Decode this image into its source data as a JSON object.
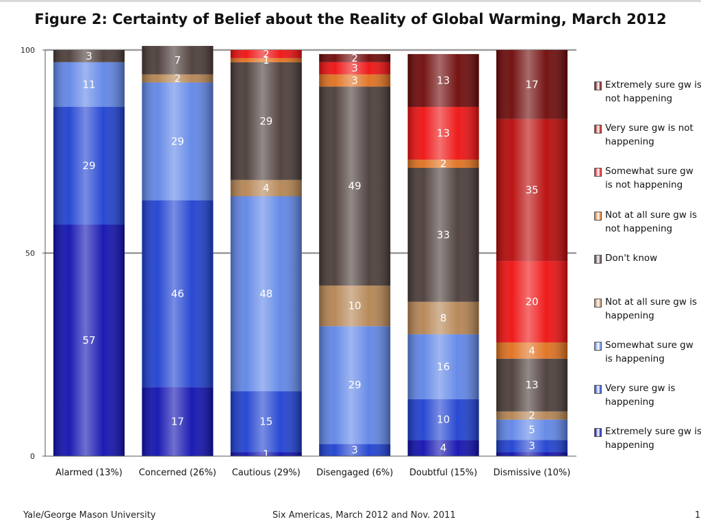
{
  "title": "Figure 2:  Certainty of Belief about the Reality of Global Warming,  March 2012",
  "footer": {
    "left": "Yale/George Mason University",
    "center": "Six Americas, March 2012 and Nov. 2011",
    "page": "1"
  },
  "chart_data": {
    "type": "bar",
    "stacked": true,
    "title": "Figure 2:  Certainty of Belief about the Reality of Global Warming,  March 2012",
    "xlabel": "",
    "ylabel": "",
    "ylim": [
      0,
      100
    ],
    "yticks": [
      "0",
      "50",
      "100"
    ],
    "grid": "horizontal at 50 and 100",
    "legend_position": "right",
    "categories": [
      "Alarmed (13%)",
      "Concerned (26%)",
      "Cautious (29%)",
      "Disengaged (6%)",
      "Doubtful (15%)",
      "Dismissive (10%)"
    ],
    "series": [
      {
        "name": "Extremely sure gw is happening",
        "color": "#1010b0",
        "values": [
          57,
          17,
          1,
          0,
          4,
          1
        ]
      },
      {
        "name": "Very sure gw is happening",
        "color": "#1e40d0",
        "values": [
          29,
          46,
          15,
          3,
          10,
          3
        ]
      },
      {
        "name": "Somewhat sure gw is happening",
        "color": "#5f85e6",
        "values": [
          11,
          29,
          48,
          29,
          16,
          5
        ]
      },
      {
        "name": "Not at all sure gw is happening",
        "color": "#b48452",
        "values": [
          0,
          2,
          4,
          10,
          8,
          2
        ]
      },
      {
        "name": "Don't know",
        "color": "#4a3b38",
        "values": [
          3,
          7,
          29,
          49,
          33,
          13
        ]
      },
      {
        "name": "Not at all sure gw is not happening",
        "color": "#e0701e",
        "values": [
          0,
          0,
          1,
          3,
          2,
          4
        ]
      },
      {
        "name": "Somewhat sure gw is not happening",
        "color": "#ee1010",
        "values": [
          0,
          0,
          2,
          3,
          13,
          20
        ]
      },
      {
        "name": "Very sure gw is not happening",
        "color": "#b80808",
        "values": [
          0,
          0,
          0,
          0,
          0,
          35
        ]
      },
      {
        "name": "Extremely sure gw is not happening",
        "color": "#6e0808",
        "values": [
          0,
          0,
          0,
          2,
          13,
          17
        ]
      }
    ],
    "data_labels": [
      [
        "57",
        "29",
        "11",
        "",
        "3",
        "",
        "",
        "",
        ""
      ],
      [
        "17",
        "46",
        "29",
        "2",
        "7",
        "",
        "",
        "",
        ""
      ],
      [
        "1",
        "15",
        "48",
        "4",
        "29",
        "1",
        "2",
        "",
        ""
      ],
      [
        "",
        "3",
        "29",
        "10",
        "49",
        "3",
        "3",
        "",
        "2"
      ],
      [
        "4",
        "10",
        "16",
        "8",
        "33",
        "2",
        "13",
        "",
        "13"
      ],
      [
        "",
        "3",
        "5",
        "2",
        "13",
        "4",
        "20",
        "35",
        "17"
      ]
    ]
  }
}
